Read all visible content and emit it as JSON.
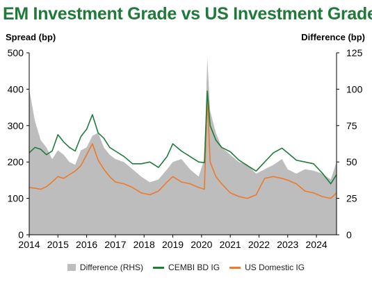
{
  "page": {
    "title": "EM Investment Grade vs US Investment Grade",
    "ylabel_left": "Spread (bp)",
    "ylabel_right": "Difference (bp)"
  },
  "colors": {
    "title": "#1f7a3a",
    "difference": "#bdbdbd",
    "cembi": "#1e7b3b",
    "us_ig": "#ec7a2a"
  },
  "chart_data": {
    "type": "line",
    "title": "EM Investment Grade vs US Investment Grade",
    "xlabel": "",
    "ylabel": "Spread (bp)",
    "ylabel_right": "Difference (bp)",
    "xlim": [
      2014,
      2024.7
    ],
    "ylim": [
      0,
      500
    ],
    "ylim_right": [
      0,
      125
    ],
    "x_ticks": [
      "2014",
      "2015",
      "2016",
      "2017",
      "2018",
      "2019",
      "2020",
      "2021",
      "2022",
      "2023",
      "2024"
    ],
    "y_ticks_left": [
      "0",
      "100",
      "200",
      "300",
      "400",
      "500"
    ],
    "y_ticks_right": [
      "0",
      "25",
      "50",
      "75",
      "100",
      "125"
    ],
    "legend_position": "bottom",
    "grid": false,
    "series": [
      {
        "name": "Difference (RHS)",
        "type": "area",
        "axis": "right",
        "x": [
          2014.0,
          2014.2,
          2014.4,
          2014.6,
          2014.8,
          2015.0,
          2015.2,
          2015.4,
          2015.6,
          2015.8,
          2016.0,
          2016.2,
          2016.4,
          2016.6,
          2016.8,
          2017.0,
          2017.3,
          2017.6,
          2017.9,
          2018.2,
          2018.5,
          2018.8,
          2019.0,
          2019.3,
          2019.6,
          2019.9,
          2020.1,
          2020.2,
          2020.3,
          2020.5,
          2020.7,
          2021.0,
          2021.3,
          2021.6,
          2021.9,
          2022.2,
          2022.5,
          2022.8,
          2023.0,
          2023.3,
          2023.6,
          2023.9,
          2024.2,
          2024.5,
          2024.7
        ],
        "values": [
          100,
          78,
          65,
          60,
          52,
          58,
          55,
          50,
          48,
          58,
          60,
          68,
          70,
          60,
          55,
          52,
          50,
          45,
          40,
          36,
          38,
          45,
          50,
          52,
          45,
          40,
          52,
          122,
          85,
          70,
          60,
          55,
          50,
          48,
          42,
          45,
          48,
          52,
          45,
          42,
          45,
          44,
          42,
          38,
          50
        ]
      },
      {
        "name": "CEMBI BD IG",
        "type": "line",
        "axis": "left",
        "x": [
          2014.0,
          2014.2,
          2014.4,
          2014.6,
          2014.8,
          2015.0,
          2015.2,
          2015.4,
          2015.6,
          2015.8,
          2016.0,
          2016.2,
          2016.4,
          2016.6,
          2016.8,
          2017.0,
          2017.3,
          2017.6,
          2017.9,
          2018.2,
          2018.5,
          2018.8,
          2019.0,
          2019.3,
          2019.6,
          2019.9,
          2020.1,
          2020.2,
          2020.3,
          2020.5,
          2020.7,
          2021.0,
          2021.3,
          2021.6,
          2021.9,
          2022.2,
          2022.5,
          2022.8,
          2023.0,
          2023.3,
          2023.6,
          2023.9,
          2024.2,
          2024.5,
          2024.7
        ],
        "values": [
          225,
          240,
          235,
          220,
          230,
          275,
          255,
          240,
          230,
          270,
          290,
          330,
          280,
          265,
          240,
          230,
          215,
          195,
          195,
          200,
          185,
          215,
          250,
          230,
          215,
          200,
          198,
          395,
          300,
          260,
          240,
          228,
          205,
          190,
          175,
          200,
          225,
          238,
          225,
          205,
          200,
          195,
          170,
          140,
          165
        ]
      },
      {
        "name": "US Domestic IG",
        "type": "line",
        "axis": "left",
        "x": [
          2014.0,
          2014.2,
          2014.4,
          2014.6,
          2014.8,
          2015.0,
          2015.2,
          2015.4,
          2015.6,
          2015.8,
          2016.0,
          2016.2,
          2016.4,
          2016.6,
          2016.8,
          2017.0,
          2017.3,
          2017.6,
          2017.9,
          2018.2,
          2018.5,
          2018.8,
          2019.0,
          2019.3,
          2019.6,
          2019.9,
          2020.1,
          2020.2,
          2020.3,
          2020.5,
          2020.7,
          2021.0,
          2021.3,
          2021.6,
          2021.9,
          2022.2,
          2022.5,
          2022.8,
          2023.0,
          2023.3,
          2023.6,
          2023.9,
          2024.2,
          2024.5,
          2024.7
        ],
        "values": [
          130,
          128,
          125,
          132,
          145,
          160,
          155,
          165,
          175,
          190,
          220,
          250,
          205,
          180,
          160,
          145,
          140,
          130,
          115,
          110,
          120,
          145,
          160,
          145,
          140,
          130,
          125,
          385,
          200,
          160,
          140,
          115,
          105,
          100,
          110,
          155,
          160,
          155,
          150,
          140,
          120,
          115,
          105,
          100,
          115
        ]
      }
    ]
  }
}
